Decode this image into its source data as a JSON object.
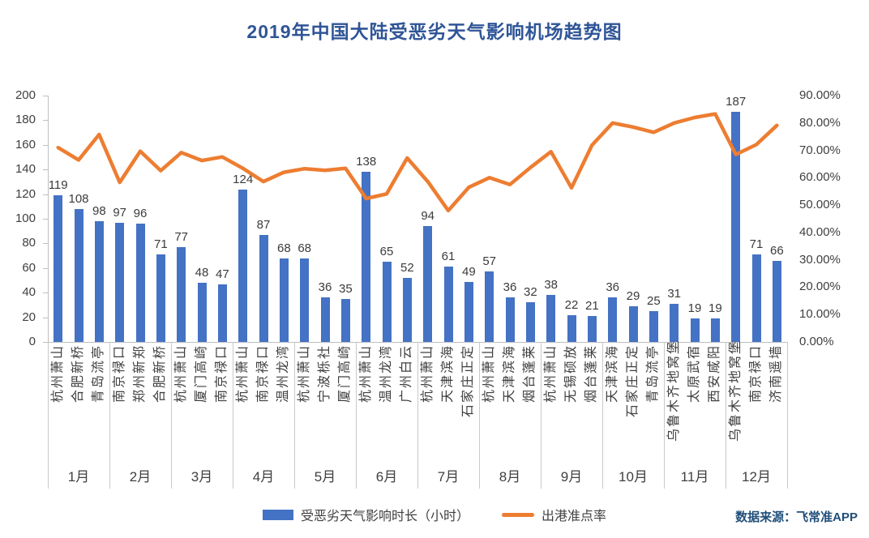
{
  "title": "2019年中国大陆受恶劣天气影响机场趋势图",
  "source_note": "数据来源：飞常准APP",
  "legend": {
    "bar_label": "受恶劣天气影响时长（小时）",
    "line_label": "出港准点率"
  },
  "colors": {
    "bar": "#4472C4",
    "line": "#ED7D31",
    "title": "#2F5597",
    "source": "#1F4E79",
    "axis": "#BFBFBF",
    "separator": "#C9C9C9",
    "text": "#404040"
  },
  "chart_data": {
    "type": "combo-bar-line",
    "bar_series_name": "受恶劣天气影响时长（小时）",
    "line_series_name": "出港准点率",
    "left_axis": {
      "max": 200,
      "tick_labels": [
        "200",
        "180",
        "160",
        "140",
        "120",
        "100",
        "80",
        "60",
        "40",
        "20",
        "0"
      ]
    },
    "right_axis": {
      "max": 90,
      "tick_labels": [
        "90.00%",
        "80.00%",
        "70.00%",
        "60.00%",
        "50.00%",
        "40.00%",
        "30.00%",
        "20.00%",
        "10.00%",
        "0.00%"
      ]
    },
    "legend_position": "bottom",
    "grid": "off",
    "months": [
      {
        "label": "1月",
        "airports": [
          {
            "name": "杭州萧山",
            "hours": 119,
            "punctuality_pct": 71.0
          },
          {
            "name": "合肥新桥",
            "hours": 108,
            "punctuality_pct": 66.5
          },
          {
            "name": "青岛流亭",
            "hours": 98,
            "punctuality_pct": 75.8
          }
        ]
      },
      {
        "label": "2月",
        "airports": [
          {
            "name": "南京禄口",
            "hours": 97,
            "punctuality_pct": 58.3
          },
          {
            "name": "郑州新郑",
            "hours": 96,
            "punctuality_pct": 69.7
          },
          {
            "name": "合肥新桥",
            "hours": 71,
            "punctuality_pct": 62.6
          }
        ]
      },
      {
        "label": "3月",
        "airports": [
          {
            "name": "杭州萧山",
            "hours": 77,
            "punctuality_pct": 69.2
          },
          {
            "name": "厦门高崎",
            "hours": 48,
            "punctuality_pct": 66.3
          },
          {
            "name": "南京禄口",
            "hours": 47,
            "punctuality_pct": 67.6
          }
        ]
      },
      {
        "label": "4月",
        "airports": [
          {
            "name": "杭州萧山",
            "hours": 124,
            "punctuality_pct": 63.4
          },
          {
            "name": "南京禄口",
            "hours": 87,
            "punctuality_pct": 58.6
          },
          {
            "name": "温州龙湾",
            "hours": 68,
            "punctuality_pct": 62.0
          }
        ]
      },
      {
        "label": "5月",
        "airports": [
          {
            "name": "杭州萧山",
            "hours": 68,
            "punctuality_pct": 63.3
          },
          {
            "name": "宁波栎社",
            "hours": 36,
            "punctuality_pct": 62.7
          },
          {
            "name": "厦门高崎",
            "hours": 35,
            "punctuality_pct": 63.4
          }
        ]
      },
      {
        "label": "6月",
        "airports": [
          {
            "name": "杭州萧山",
            "hours": 138,
            "punctuality_pct": 52.4
          },
          {
            "name": "温州龙湾",
            "hours": 65,
            "punctuality_pct": 54.1
          },
          {
            "name": "广州白云",
            "hours": 52,
            "punctuality_pct": 67.2
          }
        ]
      },
      {
        "label": "7月",
        "airports": [
          {
            "name": "杭州萧山",
            "hours": 94,
            "punctuality_pct": 58.6
          },
          {
            "name": "天津滨海",
            "hours": 61,
            "punctuality_pct": 48.0
          },
          {
            "name": "石家庄正定",
            "hours": 49,
            "punctuality_pct": 56.5
          }
        ]
      },
      {
        "label": "8月",
        "airports": [
          {
            "name": "杭州萧山",
            "hours": 57,
            "punctuality_pct": 60.0
          },
          {
            "name": "天津滨海",
            "hours": 36,
            "punctuality_pct": 57.5
          },
          {
            "name": "烟台蓬莱",
            "hours": 32,
            "punctuality_pct": 63.7
          }
        ]
      },
      {
        "label": "9月",
        "airports": [
          {
            "name": "杭州萧山",
            "hours": 38,
            "punctuality_pct": 69.5
          },
          {
            "name": "无锡硕放",
            "hours": 22,
            "punctuality_pct": 56.3
          },
          {
            "name": "烟台蓬莱",
            "hours": 21,
            "punctuality_pct": 71.9
          }
        ]
      },
      {
        "label": "10月",
        "airports": [
          {
            "name": "天津滨海",
            "hours": 36,
            "punctuality_pct": 80.0
          },
          {
            "name": "石家庄正定",
            "hours": 29,
            "punctuality_pct": 78.5
          },
          {
            "name": "青岛流亭",
            "hours": 25,
            "punctuality_pct": 76.6
          }
        ]
      },
      {
        "label": "11月",
        "airports": [
          {
            "name": "乌鲁木齐地窝堡",
            "hours": 31,
            "punctuality_pct": 80.0
          },
          {
            "name": "太原武宿",
            "hours": 19,
            "punctuality_pct": 82.0
          },
          {
            "name": "西安咸阳",
            "hours": 19,
            "punctuality_pct": 83.3
          }
        ]
      },
      {
        "label": "12月",
        "airports": [
          {
            "name": "乌鲁木齐地窝堡",
            "hours": 187,
            "punctuality_pct": 68.5
          },
          {
            "name": "南京禄口",
            "hours": 71,
            "punctuality_pct": 72.1
          },
          {
            "name": "济南遥墙",
            "hours": 66,
            "punctuality_pct": 79.1
          }
        ]
      }
    ]
  }
}
